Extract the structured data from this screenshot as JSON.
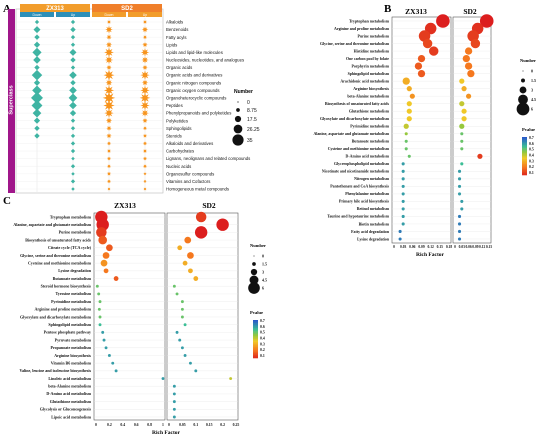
{
  "panel_letters": {
    "a": "A",
    "b": "B",
    "c": "C"
  },
  "colors": {
    "zx313": "#f29d2b",
    "sd2": "#f07f2a",
    "magenta": "#a0168a",
    "teal": "#3fb4a3",
    "orange": "#f7941d",
    "grid": "#d9d9d9"
  },
  "chart_data": [
    {
      "id": "A",
      "type": "scatter",
      "title": "",
      "headers": [
        "ZX313",
        "SD2"
      ],
      "subheaders": [
        "Down",
        "Up",
        "Down",
        "Up"
      ],
      "side_label": "Superclass",
      "legend": {
        "title": "Number",
        "sizes": [
          "0",
          "8.75",
          "17.5",
          "26.25",
          "35"
        ]
      },
      "categories": [
        "Alkaloids",
        "Benzenoids",
        "Fatty acyls",
        "Lipids",
        "Lipids and lipid-like molecules",
        "Nucleosides, nucleotides, and analogues",
        "Organic acids",
        "Organic acids and derivatives",
        "Organic nitrogen compounds",
        "Organic oxygen compounds",
        "Organoheterocyclic compounds",
        "Peptides",
        "Phenylpropanoids and polyketides",
        "Polyketides",
        "Sphingolipids",
        "Steroids",
        "Alkaloids and derivatives",
        "Carbohydrates",
        "Lignans, neolignans and related compounds",
        "Nucleic acids",
        "Organosulfur compounds",
        "Vitamins and Cofactors",
        "Homogeneous metal compounds"
      ],
      "series": [
        {
          "name": "ZX313 Down",
          "values": [
            2,
            8,
            4,
            6,
            16,
            10,
            4,
            22,
            6,
            18,
            30,
            24,
            14,
            6,
            4,
            4,
            0,
            0,
            0,
            0,
            0,
            0,
            0
          ]
        },
        {
          "name": "ZX313 Up",
          "values": [
            2,
            4,
            2,
            2,
            8,
            4,
            2,
            10,
            4,
            10,
            14,
            10,
            6,
            2,
            2,
            2,
            2,
            2,
            1,
            2,
            1,
            2,
            1
          ]
        },
        {
          "name": "SD2 Down",
          "values": [
            2,
            10,
            4,
            6,
            18,
            12,
            4,
            24,
            8,
            20,
            33,
            26,
            16,
            6,
            4,
            4,
            2,
            2,
            2,
            2,
            2,
            2,
            1
          ]
        },
        {
          "name": "SD2 Up",
          "values": [
            2,
            6,
            2,
            4,
            12,
            8,
            4,
            16,
            6,
            16,
            22,
            16,
            10,
            4,
            2,
            2,
            2,
            2,
            2,
            2,
            1,
            1,
            1
          ]
        }
      ]
    },
    {
      "id": "B",
      "type": "scatter",
      "title": "",
      "headers": [
        "ZX313",
        "SD2"
      ],
      "xlabel": "Rich Factor",
      "x_ticks": [
        "0",
        "0.03",
        "0.06",
        "0.09",
        "0.12",
        "0.15",
        "0.18"
      ],
      "x2_ticks": [
        "0",
        "0.03",
        "0.06",
        "0.09",
        "0.12",
        "0.15"
      ],
      "legend": {
        "title": "Number",
        "sizes": [
          "0",
          "1.5",
          "3",
          "4.5",
          "6"
        ]
      },
      "colorbar": {
        "title": "Pvalue",
        "ticks": [
          "0.7",
          "0.6",
          "0.5",
          "0.4",
          "0.3",
          "0.2",
          "0.1"
        ]
      },
      "categories": [
        "Tryptophan metabolism",
        "Arginine and proline metabolism",
        "Purine metabolism",
        "Glycine, serine and threonine metabolism",
        "Histidine metabolism",
        "One carbon pool by folate",
        "Porphyrin metabolism",
        "Sphingolipid metabolism",
        "Arachidonic acid metabolism",
        "Arginine biosynthesis",
        "beta-Alanine metabolism",
        "Biosynthesis of unsaturated fatty acids",
        "Glutathione metabolism",
        "Glyoxylate and dicarboxylate metabolism",
        "Pyrimidine metabolism",
        "Alanine, aspartate and glutamate metabolism",
        "Butanoate metabolism",
        "Cysteine and methionine metabolism",
        "D-Amino acid metabolism",
        "Glycerophospholipid metabolism",
        "Nicotinate and nicotinamide metabolism",
        "Nitrogen metabolism",
        "Pantothenate and CoA biosynthesis",
        "Phenylalanine metabolism",
        "Primary bile acid biosynthesis",
        "Retinol metabolism",
        "Taurine and hypotaurine metabolism",
        "Biotin metabolism",
        "Fatty acid degradation",
        "Lysine degradation"
      ],
      "series": [
        {
          "name": "ZX313",
          "x": [
            0.16,
            0.12,
            0.1,
            0.11,
            0.13,
            0.09,
            0.08,
            0.09,
            0.04,
            0.05,
            0.06,
            0.05,
            0.05,
            0.05,
            0.04,
            0.04,
            0.04,
            0.04,
            0.05,
            0.03,
            0.03,
            0.03,
            0.03,
            0.03,
            0.03,
            0.03,
            0.03,
            0.03,
            0.02,
            0.02
          ],
          "size": [
            6,
            5,
            5,
            4,
            4,
            3,
            3,
            3,
            3,
            2,
            2,
            2,
            2,
            2,
            2,
            1,
            1,
            1,
            1,
            1,
            1,
            1,
            1,
            1,
            1,
            1,
            1,
            1,
            1,
            1
          ],
          "p": [
            0.05,
            0.08,
            0.1,
            0.12,
            0.1,
            0.15,
            0.15,
            0.15,
            0.3,
            0.3,
            0.25,
            0.35,
            0.35,
            0.35,
            0.4,
            0.45,
            0.5,
            0.5,
            0.5,
            0.6,
            0.6,
            0.6,
            0.6,
            0.6,
            0.6,
            0.6,
            0.6,
            0.6,
            0.65,
            0.65
          ]
        },
        {
          "name": "SD2",
          "x": [
            0.14,
            0.1,
            0.08,
            0.09,
            0.06,
            0.05,
            0.06,
            0.07,
            0.03,
            0.04,
            0.06,
            0.03,
            0.04,
            0.04,
            0.03,
            0.03,
            0.03,
            0.03,
            0.11,
            0.03,
            0.02,
            0.02,
            0.02,
            0.02,
            0.03,
            0.03,
            0.02,
            0.02,
            0.02,
            0.02
          ],
          "size": [
            6,
            5,
            5,
            4,
            3,
            3,
            3,
            3,
            2,
            2,
            2,
            2,
            2,
            2,
            2,
            1,
            1,
            1,
            2,
            1,
            1,
            1,
            1,
            1,
            1,
            1,
            1,
            1,
            1,
            1
          ],
          "p": [
            0.05,
            0.08,
            0.1,
            0.12,
            0.2,
            0.2,
            0.2,
            0.2,
            0.35,
            0.3,
            0.25,
            0.4,
            0.35,
            0.35,
            0.45,
            0.5,
            0.5,
            0.5,
            0.1,
            0.55,
            0.6,
            0.6,
            0.6,
            0.6,
            0.6,
            0.6,
            0.65,
            0.65,
            0.65,
            0.65
          ]
        }
      ]
    },
    {
      "id": "C",
      "type": "scatter",
      "title": "",
      "headers": [
        "ZX313",
        "SD2"
      ],
      "xlabel": "Rich Factor",
      "x_ticks": [
        "0",
        "0.2",
        "0.4",
        "0.6",
        "0.8",
        "1"
      ],
      "x2_ticks": [
        "0",
        "0.05",
        "0.1",
        "0.15",
        "0.2",
        "0.25"
      ],
      "legend": {
        "title": "Number",
        "sizes": [
          "0",
          "1.5",
          "3",
          "4.5",
          "6"
        ]
      },
      "colorbar": {
        "title": "Pvalue",
        "ticks": [
          "0.7",
          "0.6",
          "0.5",
          "0.4",
          "0.3",
          "0.2",
          "0.1"
        ]
      },
      "categories": [
        "Tryptophan metabolism",
        "Alanine, aspartate and glutamate metabolism",
        "Purine metabolism",
        "Biosynthesis of unsaturated fatty acids",
        "Citrate cycle (TCA cycle)",
        "Glycine, serine and threonine metabolism",
        "Cysteine and methionine metabolism",
        "Lysine degradation",
        "Butanoate metabolism",
        "Steroid hormone biosynthesis",
        "Tyrosine metabolism",
        "Pyrimidine metabolism",
        "Arginine and proline metabolism",
        "Glyoxylate and dicarboxylate metabolism",
        "Sphingolipid metabolism",
        "Pentose phosphate pathway",
        "Pyruvate metabolism",
        "Propanoate metabolism",
        "Arginine biosynthesis",
        "Vitamin B6 metabolism",
        "Valine, leucine and isoleucine biosynthesis",
        "Linoleic acid metabolism",
        "beta-Alanine metabolism",
        "D-Amino acid metabolism",
        "Glutathione metabolism",
        "Glycolysis or Gluconeogenesis",
        "Lipoic acid metabolism"
      ],
      "series": [
        {
          "name": "ZX313",
          "x": [
            0.08,
            0.1,
            0.08,
            0.1,
            0.2,
            0.15,
            0.12,
            0.15,
            0.3,
            0.02,
            0.04,
            0.06,
            0.05,
            0.06,
            0.06,
            0.1,
            0.12,
            0.15,
            0.2,
            0.25,
            0.3,
            1.0,
            null,
            null,
            null,
            null,
            null
          ],
          "size": [
            6,
            6,
            5,
            4,
            3,
            3,
            3,
            2,
            2,
            1,
            1,
            1,
            1,
            1,
            1,
            1,
            1,
            1,
            1,
            1,
            1,
            1,
            0,
            0,
            0,
            0,
            0
          ],
          "p": [
            0.05,
            0.05,
            0.1,
            0.15,
            0.15,
            0.2,
            0.25,
            0.2,
            0.15,
            0.5,
            0.5,
            0.5,
            0.5,
            0.5,
            0.55,
            0.6,
            0.6,
            0.6,
            0.6,
            0.6,
            0.6,
            0.6,
            null,
            null,
            null,
            null,
            null
          ]
        },
        {
          "name": "SD2",
          "x": [
            0.12,
            0.2,
            0.12,
            0.07,
            0.04,
            0.08,
            0.06,
            0.08,
            0.1,
            0.02,
            0.03,
            0.05,
            0.05,
            0.05,
            0.06,
            0.03,
            0.04,
            0.05,
            0.06,
            0.08,
            0.1,
            0.23,
            0.02,
            0.02,
            0.02,
            0.02,
            0.02
          ],
          "size": [
            5,
            6,
            6,
            3,
            2,
            3,
            2,
            2,
            2,
            1,
            1,
            1,
            1,
            1,
            1,
            1,
            1,
            1,
            1,
            1,
            1,
            1,
            1,
            1,
            1,
            1,
            1
          ],
          "p": [
            0.1,
            0.05,
            0.05,
            0.2,
            0.3,
            0.2,
            0.3,
            0.3,
            0.3,
            0.5,
            0.5,
            0.5,
            0.5,
            0.5,
            0.55,
            0.6,
            0.6,
            0.6,
            0.6,
            0.6,
            0.6,
            0.4,
            0.6,
            0.6,
            0.6,
            0.6,
            0.6
          ]
        }
      ]
    }
  ]
}
